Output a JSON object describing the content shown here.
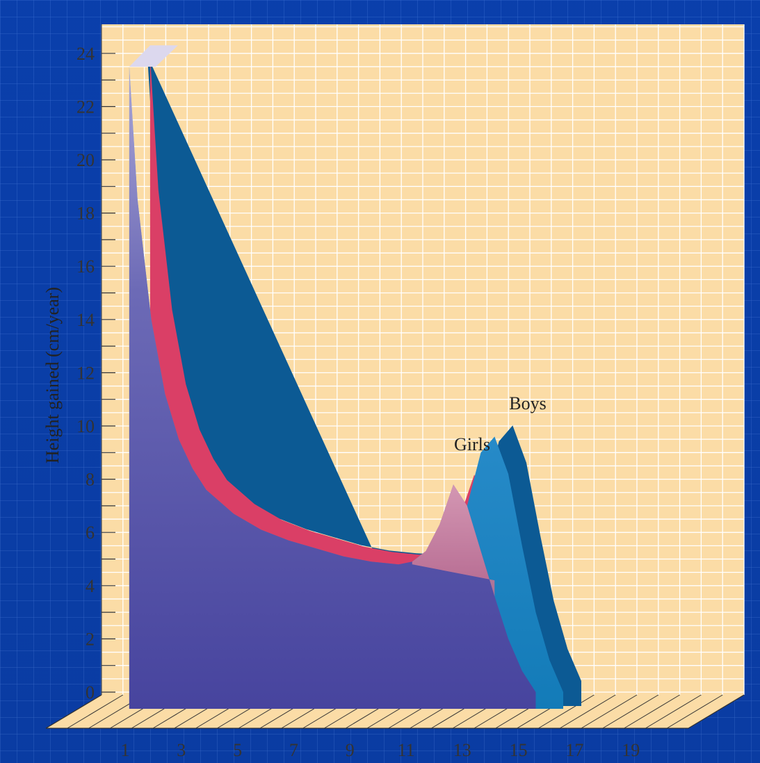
{
  "chart_data": {
    "type": "area",
    "ylabel": "Height gained (cm/year)",
    "xlabel": "",
    "y_ticks": [
      0,
      2,
      4,
      6,
      8,
      10,
      12,
      14,
      16,
      18,
      20,
      22,
      24
    ],
    "x_ticks": [
      1,
      3,
      5,
      7,
      9,
      11,
      13,
      15,
      17,
      19
    ],
    "ylim": [
      0,
      25
    ],
    "xlim": [
      1,
      20
    ],
    "grid": true,
    "series": [
      {
        "name": "Girls",
        "color": "#e0426a",
        "x": [
          1.2,
          1.5,
          2,
          2.5,
          3,
          3.5,
          4,
          5,
          6,
          7,
          8,
          9,
          10,
          11,
          11.5,
          12,
          12.5,
          13,
          13.5,
          14,
          14.5,
          15,
          15.5,
          16
        ],
        "y": [
          23.5,
          18.5,
          14,
          11.2,
          9.5,
          8.4,
          7.6,
          6.7,
          6.1,
          5.7,
          5.4,
          5.1,
          4.9,
          4.8,
          4.9,
          5.3,
          6.3,
          7.8,
          7.0,
          5.3,
          3.6,
          2.0,
          0.8,
          0
        ]
      },
      {
        "name": "Boys",
        "color": "#1f86c8",
        "x": [
          1.2,
          1.5,
          2,
          2.5,
          3,
          3.5,
          4,
          5,
          6,
          7,
          8,
          9,
          10,
          11,
          12,
          12.5,
          13,
          13.5,
          14,
          14.5,
          15,
          15.5,
          16,
          16.5,
          17
        ],
        "y": [
          23.5,
          18.5,
          14,
          11.2,
          9.5,
          8.4,
          7.6,
          6.7,
          6.1,
          5.7,
          5.4,
          5.1,
          4.9,
          4.8,
          4.75,
          4.9,
          5.6,
          7.0,
          9.0,
          9.6,
          8.2,
          5.5,
          3.0,
          1.2,
          0
        ]
      }
    ],
    "annotations": [
      "Girls",
      "Boys"
    ]
  }
}
